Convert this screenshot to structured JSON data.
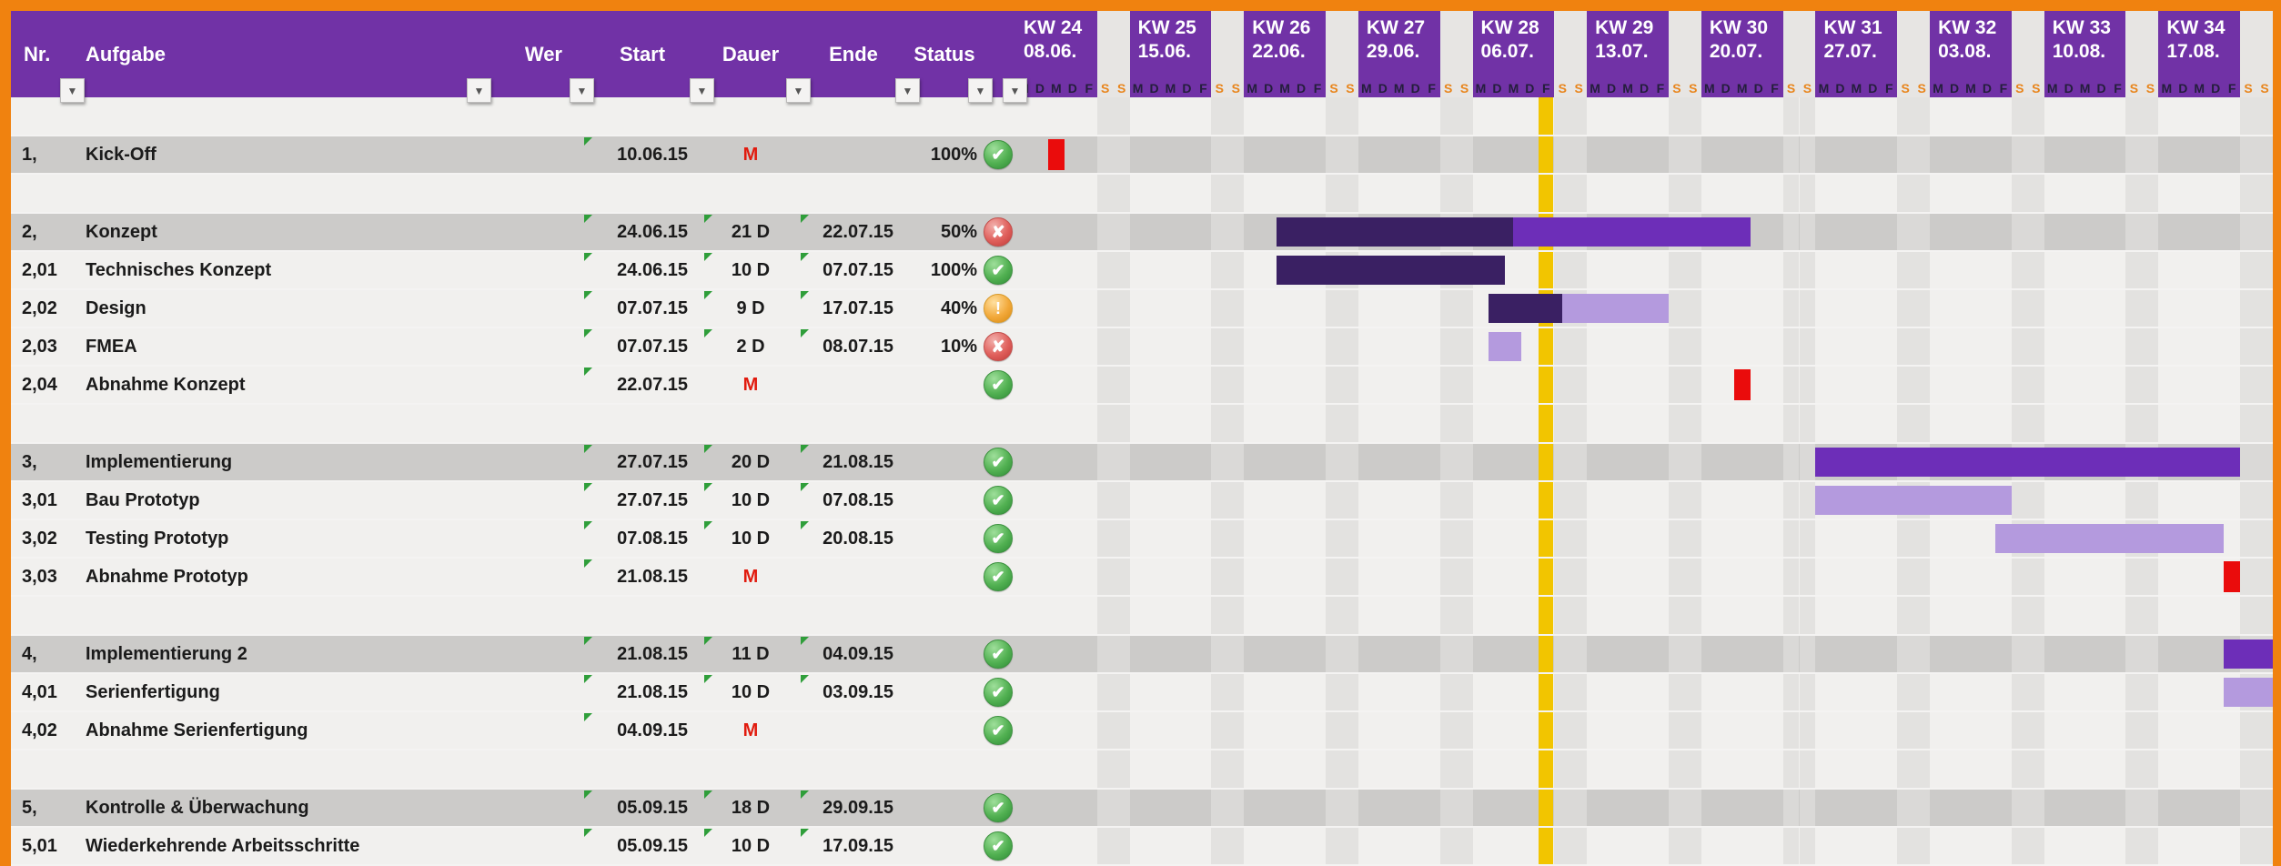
{
  "colors": {
    "frame_border": "#f0820f",
    "header_purple": "#7132a6",
    "bar_done": "#3a2063",
    "bar_planned": "#6d2eb8",
    "bar_light": "#b49ade",
    "bar_milestone_red": "#ea0c0c",
    "today_line_yellow": "#f2c500",
    "main_row_gray": "#cccbc9",
    "weekend_band": "#e3e2e0"
  },
  "header": {
    "nr": "Nr.",
    "aufgabe": "Aufgabe",
    "wer": "Wer",
    "start": "Start",
    "dauer": "Dauer",
    "ende": "Ende",
    "status": "Status",
    "filter_icon": "▼"
  },
  "timeline": {
    "day_letters": [
      "M",
      "D",
      "M",
      "D",
      "F",
      "S",
      "S"
    ],
    "weekend_day_indices": [
      5,
      6
    ],
    "days_per_week": 7,
    "total_days": 77,
    "today_day_index": 32,
    "weeks": [
      {
        "kw": "KW 24",
        "date": "08.06."
      },
      {
        "kw": "KW 25",
        "date": "15.06."
      },
      {
        "kw": "KW 26",
        "date": "22.06."
      },
      {
        "kw": "KW 27",
        "date": "29.06."
      },
      {
        "kw": "KW 28",
        "date": "06.07."
      },
      {
        "kw": "KW 29",
        "date": "13.07."
      },
      {
        "kw": "KW 30",
        "date": "20.07."
      },
      {
        "kw": "KW 31",
        "date": "27.07."
      },
      {
        "kw": "KW 32",
        "date": "03.08."
      },
      {
        "kw": "KW 33",
        "date": "10.08."
      },
      {
        "kw": "KW 34",
        "date": "17.08."
      }
    ]
  },
  "rows": [
    {
      "type": "spacer",
      "h": 43
    },
    {
      "type": "main",
      "h": 42,
      "nr": "1,",
      "task": "Kick-Off",
      "wer": "",
      "start": "10.06.15",
      "dauer": "M",
      "milestone": true,
      "ende": "",
      "pct": "100%",
      "icon": "ok",
      "markers": [
        "start"
      ],
      "bar": [
        {
          "t": "red",
          "a": 2,
          "b": 3
        }
      ]
    },
    {
      "type": "spacer",
      "h": 43
    },
    {
      "type": "main",
      "h": 42,
      "nr": "2,",
      "task": "Konzept",
      "wer": "",
      "start": "24.06.15",
      "dauer": "21 D",
      "milestone": false,
      "ende": "22.07.15",
      "pct": "50%",
      "icon": "fail",
      "markers": [
        "start",
        "dauer",
        "ende"
      ],
      "bar": [
        {
          "t": "done",
          "a": 16,
          "b": 30.5
        },
        {
          "t": "plan",
          "a": 30.5,
          "b": 45
        }
      ]
    },
    {
      "type": "sub",
      "h": 42,
      "nr": "2,01",
      "task": "Technisches Konzept",
      "wer": "",
      "start": "24.06.15",
      "dauer": "10 D",
      "milestone": false,
      "ende": "07.07.15",
      "pct": "100%",
      "icon": "ok",
      "markers": [
        "start",
        "dauer",
        "ende"
      ],
      "bar": [
        {
          "t": "done",
          "a": 16,
          "b": 30
        }
      ]
    },
    {
      "type": "sub",
      "h": 42,
      "nr": "2,02",
      "task": "Design",
      "wer": "",
      "start": "07.07.15",
      "dauer": "9 D",
      "milestone": false,
      "ende": "17.07.15",
      "pct": "40%",
      "icon": "warn",
      "markers": [
        "start",
        "dauer",
        "ende"
      ],
      "bar": [
        {
          "t": "done",
          "a": 29,
          "b": 33.5
        },
        {
          "t": "light",
          "a": 33.5,
          "b": 40
        }
      ]
    },
    {
      "type": "sub",
      "h": 42,
      "nr": "2,03",
      "task": "FMEA",
      "wer": "",
      "start": "07.07.15",
      "dauer": "2 D",
      "milestone": false,
      "ende": "08.07.15",
      "pct": "10%",
      "icon": "fail",
      "markers": [
        "start",
        "dauer",
        "ende"
      ],
      "bar": [
        {
          "t": "light",
          "a": 29,
          "b": 31
        }
      ]
    },
    {
      "type": "sub",
      "h": 42,
      "nr": "2,04",
      "task": "Abnahme Konzept",
      "wer": "",
      "start": "22.07.15",
      "dauer": "M",
      "milestone": true,
      "ende": "",
      "pct": "",
      "icon": "ok",
      "markers": [
        "start"
      ],
      "bar": [
        {
          "t": "red",
          "a": 44,
          "b": 45
        }
      ]
    },
    {
      "type": "spacer",
      "h": 43
    },
    {
      "type": "main",
      "h": 42,
      "nr": "3,",
      "task": "Implementierung",
      "wer": "",
      "start": "27.07.15",
      "dauer": "20 D",
      "milestone": false,
      "ende": "21.08.15",
      "pct": "",
      "icon": "ok",
      "markers": [
        "start",
        "dauer",
        "ende"
      ],
      "bar": [
        {
          "t": "plan",
          "a": 49,
          "b": 75
        }
      ]
    },
    {
      "type": "sub",
      "h": 42,
      "nr": "3,01",
      "task": "Bau Prototyp",
      "wer": "",
      "start": "27.07.15",
      "dauer": "10 D",
      "milestone": false,
      "ende": "07.08.15",
      "pct": "",
      "icon": "ok",
      "markers": [
        "start",
        "dauer",
        "ende"
      ],
      "bar": [
        {
          "t": "light",
          "a": 49,
          "b": 61
        }
      ]
    },
    {
      "type": "sub",
      "h": 42,
      "nr": "3,02",
      "task": "Testing Prototyp",
      "wer": "",
      "start": "07.08.15",
      "dauer": "10 D",
      "milestone": false,
      "ende": "20.08.15",
      "pct": "",
      "icon": "ok",
      "markers": [
        "start",
        "dauer",
        "ende"
      ],
      "bar": [
        {
          "t": "light",
          "a": 60,
          "b": 74
        }
      ]
    },
    {
      "type": "sub",
      "h": 42,
      "nr": "3,03",
      "task": "Abnahme Prototyp",
      "wer": "",
      "start": "21.08.15",
      "dauer": "M",
      "milestone": true,
      "ende": "",
      "pct": "",
      "icon": "ok",
      "markers": [
        "start"
      ],
      "bar": [
        {
          "t": "red",
          "a": 74,
          "b": 75
        }
      ]
    },
    {
      "type": "spacer",
      "h": 43
    },
    {
      "type": "main",
      "h": 42,
      "nr": "4,",
      "task": "Implementierung 2",
      "wer": "",
      "start": "21.08.15",
      "dauer": "11 D",
      "milestone": false,
      "ende": "04.09.15",
      "pct": "",
      "icon": "ok",
      "markers": [
        "start",
        "dauer",
        "ende"
      ],
      "bar": [
        {
          "t": "plan",
          "a": 74,
          "b": 77
        }
      ]
    },
    {
      "type": "sub",
      "h": 42,
      "nr": "4,01",
      "task": "Serienfertigung",
      "wer": "",
      "start": "21.08.15",
      "dauer": "10 D",
      "milestone": false,
      "ende": "03.09.15",
      "pct": "",
      "icon": "ok",
      "markers": [
        "start",
        "dauer",
        "ende"
      ],
      "bar": [
        {
          "t": "light",
          "a": 74,
          "b": 77
        }
      ]
    },
    {
      "type": "sub",
      "h": 42,
      "nr": "4,02",
      "task": "Abnahme Serienfertigung",
      "wer": "",
      "start": "04.09.15",
      "dauer": "M",
      "milestone": true,
      "ende": "",
      "pct": "",
      "icon": "ok",
      "markers": [
        "start"
      ],
      "bar": []
    },
    {
      "type": "spacer",
      "h": 43
    },
    {
      "type": "main",
      "h": 42,
      "nr": "5,",
      "task": "Kontrolle & Überwachung",
      "wer": "",
      "start": "05.09.15",
      "dauer": "18 D",
      "milestone": false,
      "ende": "29.09.15",
      "pct": "",
      "icon": "ok",
      "markers": [
        "start",
        "dauer",
        "ende"
      ],
      "bar": []
    },
    {
      "type": "sub",
      "h": 42,
      "nr": "5,01",
      "task": "Wiederkehrende Arbeitsschritte",
      "wer": "",
      "start": "05.09.15",
      "dauer": "10 D",
      "milestone": false,
      "ende": "17.09.15",
      "pct": "",
      "icon": "ok",
      "markers": [
        "start",
        "dauer",
        "ende"
      ],
      "bar": []
    }
  ],
  "status_icon_glyphs": {
    "ok": "✔",
    "fail": "✘",
    "warn": "!"
  }
}
